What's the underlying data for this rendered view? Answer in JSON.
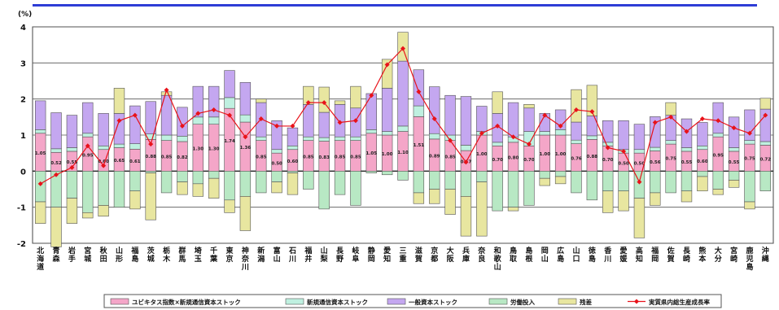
{
  "chart_data": {
    "type": "bar",
    "stacked": true,
    "unit_label": "(%)",
    "ylim": [
      -2,
      4
    ],
    "yticks": [
      -2,
      -1,
      0,
      1,
      2,
      3,
      4
    ],
    "grid": true,
    "legend_position": "bottom",
    "categories": [
      "北海道",
      "青森",
      "岩手",
      "宮城",
      "秋田",
      "山形",
      "福島",
      "茨城",
      "栃木",
      "群馬",
      "埼玉",
      "千葉",
      "東京",
      "神奈川",
      "新潟",
      "富山",
      "石川",
      "福井",
      "山梨",
      "長野",
      "岐阜",
      "静岡",
      "愛知",
      "三重",
      "滋賀",
      "京都",
      "大阪",
      "兵庫",
      "奈良",
      "和歌山",
      "鳥取",
      "島根",
      "岡山",
      "広島",
      "山口",
      "徳島",
      "香川",
      "愛媛",
      "高知",
      "福岡",
      "佐賀",
      "長崎",
      "熊本",
      "大分",
      "宮崎",
      "鹿児島",
      "沖縄"
    ],
    "series": [
      {
        "name": "ユビキタス指数×新規通信資本ストック",
        "color": "#f4a6c8",
        "values": [
          1.05,
          0.52,
          0.55,
          0.95,
          0.6,
          0.65,
          0.61,
          0.88,
          0.85,
          0.82,
          1.3,
          1.3,
          1.74,
          1.36,
          0.85,
          0.5,
          0.6,
          0.85,
          0.83,
          0.85,
          0.85,
          1.05,
          1.0,
          1.1,
          1.51,
          0.89,
          0.85,
          0.57,
          1.0,
          0.7,
          0.8,
          0.7,
          1.0,
          1.0,
          0.76,
          0.88,
          0.7,
          0.5,
          0.5,
          0.56,
          0.75,
          0.55,
          0.6,
          0.95,
          0.55,
          0.75,
          0.72
        ]
      },
      {
        "name": "新規通信資本ストック",
        "color": "#bff0e0",
        "values": [
          0.1,
          0.1,
          0.1,
          0.1,
          0.1,
          0.1,
          0.15,
          0.15,
          0.15,
          0.15,
          0.2,
          0.2,
          0.3,
          0.2,
          0.1,
          0.1,
          0.1,
          0.1,
          0.1,
          0.1,
          0.1,
          0.1,
          0.1,
          0.15,
          0.3,
          0.15,
          0.15,
          0.15,
          0.1,
          0.1,
          0.15,
          0.4,
          0.1,
          0.15,
          0.1,
          0.1,
          0.1,
          0.1,
          0.1,
          0.1,
          0.1,
          0.1,
          0.1,
          0.1,
          0.1,
          0.1,
          0.1
        ]
      },
      {
        "name": "一般資本ストック",
        "color": "#c4a7f0",
        "values": [
          0.8,
          1.0,
          0.9,
          0.85,
          0.9,
          0.85,
          1.05,
          0.9,
          1.1,
          0.8,
          0.85,
          0.85,
          0.75,
          0.9,
          0.95,
          0.8,
          0.5,
          0.9,
          0.7,
          0.9,
          0.8,
          1.0,
          1.2,
          1.8,
          1.0,
          1.3,
          1.1,
          1.35,
          0.7,
          0.8,
          0.95,
          0.65,
          0.5,
          0.55,
          0.5,
          0.55,
          0.6,
          0.8,
          0.7,
          0.85,
          0.7,
          0.8,
          0.65,
          0.85,
          0.85,
          0.85,
          0.9
        ]
      },
      {
        "name": "労働投入",
        "color": "#b8e8c4",
        "values": [
          -0.85,
          -1.0,
          -0.75,
          -1.15,
          -0.95,
          -1.0,
          -0.55,
          -0.05,
          -0.6,
          -0.3,
          -0.35,
          -0.2,
          -0.8,
          -0.7,
          -0.6,
          -0.3,
          -0.05,
          -0.5,
          -1.05,
          -0.65,
          -0.95,
          -0.05,
          -0.1,
          -0.25,
          -0.6,
          -0.5,
          -0.5,
          -0.7,
          -0.3,
          -1.1,
          -1.0,
          -0.95,
          -0.2,
          -0.15,
          -0.6,
          -0.8,
          -0.55,
          -0.55,
          -0.75,
          -0.6,
          -0.6,
          -0.55,
          -0.15,
          -0.5,
          -0.25,
          -0.85,
          -0.55
        ]
      },
      {
        "name": "残差",
        "color": "#e8e6a0",
        "values": [
          -0.6,
          -1.1,
          -0.7,
          -0.15,
          -0.3,
          0.7,
          -0.5,
          -1.3,
          0.1,
          -0.35,
          -0.35,
          -0.55,
          -0.35,
          -0.95,
          0.1,
          -0.3,
          -0.6,
          0.5,
          0.7,
          0.1,
          0.6,
          0.0,
          0.8,
          0.8,
          -0.3,
          -0.4,
          -0.7,
          -1.1,
          -1.5,
          0.6,
          -0.1,
          0.1,
          -0.2,
          -0.2,
          0.9,
          0.85,
          -0.6,
          -0.55,
          -1.1,
          -0.35,
          0.35,
          -0.3,
          -0.4,
          -0.15,
          -0.2,
          -0.2,
          0.3
        ]
      }
    ],
    "line_series": {
      "name": "実質県内総生産成長率",
      "color": "#e8121a",
      "values": [
        -0.35,
        -0.1,
        0.1,
        0.7,
        0.15,
        1.4,
        1.55,
        0.75,
        2.25,
        1.25,
        1.6,
        1.7,
        1.55,
        0.95,
        1.45,
        1.25,
        1.25,
        1.9,
        1.9,
        1.35,
        1.4,
        2.1,
        2.95,
        3.4,
        2.2,
        1.45,
        0.85,
        0.25,
        1.05,
        1.25,
        0.95,
        0.75,
        1.55,
        1.25,
        1.7,
        1.65,
        0.65,
        0.55,
        -0.3,
        1.35,
        1.5,
        1.1,
        1.45,
        1.4,
        1.2,
        1.05,
        1.55
      ]
    }
  }
}
